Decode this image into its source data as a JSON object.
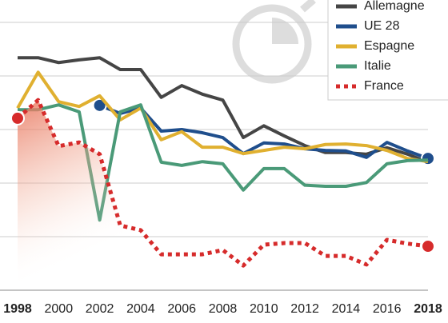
{
  "chart_data": {
    "type": "line",
    "legend": "top-right",
    "grid": true,
    "x": [
      1998,
      1999,
      2000,
      2001,
      2002,
      2003,
      2004,
      2005,
      2006,
      2007,
      2008,
      2009,
      2010,
      2011,
      2012,
      2013,
      2014,
      2015,
      2016,
      2017,
      2018
    ],
    "xlim": [
      1998,
      2018
    ],
    "xticks": [
      1998,
      2000,
      2002,
      2004,
      2006,
      2008,
      2010,
      2012,
      2014,
      2016,
      2018
    ],
    "ylim": [
      0,
      50
    ],
    "yticks": [
      0,
      10,
      20,
      30,
      40,
      50
    ],
    "series": [
      {
        "name": "Allemagne",
        "color": "#454545",
        "values": [
          43.4,
          43.4,
          42.5,
          43,
          43.4,
          41.2,
          41.2,
          36,
          38.2,
          36.6,
          35.5,
          28.5,
          30.7,
          28.8,
          27,
          25.7,
          25.7,
          25.4,
          26.6,
          25.4,
          23.9
        ]
      },
      {
        "name": "UE 28",
        "color": "#1f4e8c",
        "values": [
          null,
          null,
          null,
          null,
          34.5,
          33,
          34,
          29.7,
          30,
          29.4,
          28.5,
          25.5,
          27.5,
          27.3,
          26.4,
          26.1,
          26,
          24.8,
          27.6,
          26,
          24.6
        ]
      },
      {
        "name": "Espagne",
        "color": "#e0b030",
        "values": [
          34,
          40.7,
          35.2,
          34.3,
          36.3,
          31.8,
          34,
          28.1,
          29.6,
          26.7,
          26.7,
          25.5,
          26.1,
          26.7,
          26.4,
          27.2,
          27.3,
          27,
          26.1,
          24.6,
          24
        ]
      },
      {
        "name": "Italie",
        "color": "#4a9a78",
        "values": [
          33.7,
          33.7,
          34.6,
          33.3,
          13.1,
          33.3,
          34.6,
          23.9,
          23.3,
          24,
          23.6,
          18.7,
          22.7,
          22.7,
          19.6,
          19.4,
          19.4,
          20.1,
          23.6,
          24.2,
          24.3
        ]
      },
      {
        "name": "France",
        "color": "#d62b2b",
        "values": [
          32.1,
          35.5,
          26.9,
          27.6,
          25.4,
          12.1,
          11.2,
          6.7,
          6.7,
          6.7,
          7.5,
          4.6,
          8.5,
          8.8,
          8.8,
          6.4,
          6.4,
          4.8,
          9.4,
          8.7,
          8.2
        ]
      }
    ]
  }
}
